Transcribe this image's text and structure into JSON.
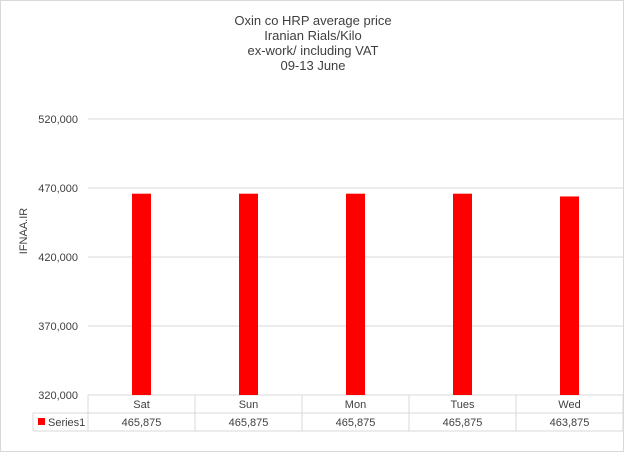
{
  "chart_data": {
    "type": "bar",
    "title_lines": [
      "Oxin co HRP average  price",
      "Iranian  Rials/Kilo",
      "ex-work/ including VAT",
      "09-13  June"
    ],
    "ylabel": "IFNAA.IR",
    "xlabel": "",
    "categories": [
      "Sat",
      "Sun",
      "Mon",
      "Tues",
      "Wed"
    ],
    "series": [
      {
        "name": "Series1",
        "color": "#ff0000",
        "values": [
          465875,
          465875,
          465875,
          465875,
          463875
        ],
        "value_labels": [
          "465,875",
          "465,875",
          "465,875",
          "465,875",
          "463,875"
        ]
      }
    ],
    "ylim": [
      320000,
      520000
    ],
    "yticks": [
      320000,
      370000,
      420000,
      470000,
      520000
    ],
    "ytick_labels": [
      "320,000",
      "370,000",
      "420,000",
      "470,000",
      "520,000"
    ],
    "grid": true,
    "data_table": true
  }
}
